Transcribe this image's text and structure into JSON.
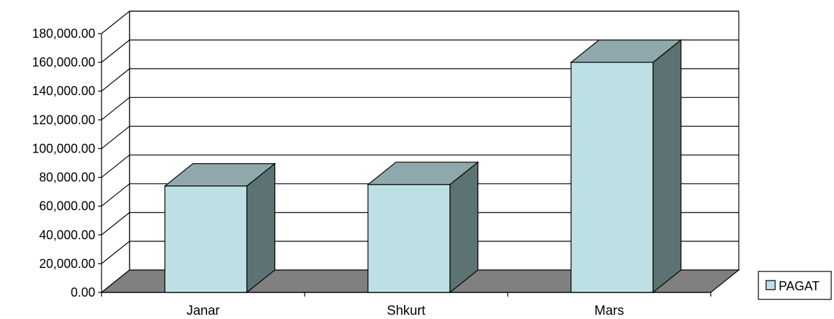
{
  "chart_data": {
    "type": "bar",
    "style": "3d-column",
    "categories": [
      "Janar",
      "Shkurt",
      "Mars"
    ],
    "series": [
      {
        "name": "PAGAT",
        "values": [
          74000,
          75000,
          160000
        ]
      }
    ],
    "ylim": [
      0,
      180000
    ],
    "y_ticks": [
      0,
      20000,
      40000,
      60000,
      80000,
      100000,
      120000,
      140000,
      160000,
      180000
    ],
    "y_tick_labels": [
      "0.00",
      "20,000.00",
      "40,000.00",
      "60,000.00",
      "80,000.00",
      "100,000.00",
      "120,000.00",
      "140,000.00",
      "160,000.00",
      "180,000.00"
    ],
    "grid": true,
    "legend_position": "right",
    "colors": {
      "bar_front": "#bde0e4",
      "bar_top": "#8fa8ab",
      "bar_side": "#5d7273",
      "floor": "#808080",
      "gridline": "#000000",
      "legend_swatch": "#bde0e4"
    }
  }
}
